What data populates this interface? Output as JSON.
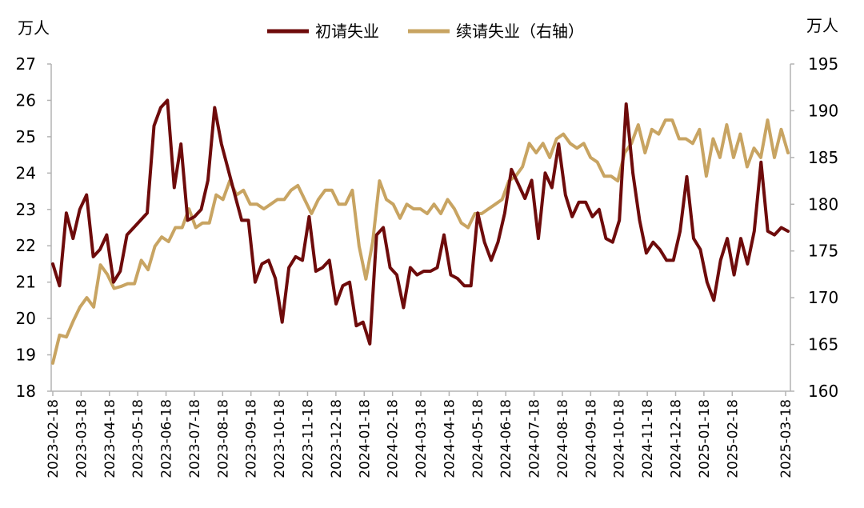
{
  "chart_data": {
    "type": "line",
    "left_axis": {
      "unit": "万人",
      "ylim": [
        18,
        27
      ],
      "ticks": [
        "27",
        "26",
        "25",
        "24",
        "23",
        "22",
        "21",
        "20",
        "19",
        "18"
      ]
    },
    "right_axis": {
      "unit": "万人",
      "ylim": [
        160,
        195
      ],
      "ticks": [
        "195",
        "190",
        "185",
        "180",
        "175",
        "170",
        "165",
        "160"
      ]
    },
    "x_ticks": [
      "2023-02-18",
      "2023-03-18",
      "2023-04-18",
      "2023-05-18",
      "2023-06-18",
      "2023-07-18",
      "2023-08-18",
      "2023-09-18",
      "2023-10-18",
      "2023-11-18",
      "2023-12-18",
      "2024-01-18",
      "2024-02-18",
      "2024-03-18",
      "2024-04-18",
      "2024-05-18",
      "2024-06-18",
      "2024-07-18",
      "2024-08-18",
      "2024-09-18",
      "2024-10-18",
      "2024-11-18",
      "2024-12-18",
      "2025-01-18",
      "2025-02-18",
      "2025-03-18"
    ],
    "legend_position": "top",
    "grid": false,
    "series": [
      {
        "name": "初请失业",
        "axis": "left",
        "color": "#6e0b0b",
        "values": [
          21.5,
          20.9,
          22.9,
          22.2,
          23.0,
          23.4,
          21.7,
          21.9,
          22.3,
          21.0,
          21.3,
          22.3,
          22.5,
          22.7,
          22.9,
          25.3,
          25.8,
          26.0,
          23.6,
          24.8,
          22.7,
          22.8,
          23.0,
          23.8,
          25.8,
          24.8,
          24.1,
          23.4,
          22.7,
          22.7,
          21.0,
          21.5,
          21.6,
          21.1,
          19.9,
          21.4,
          21.7,
          21.6,
          22.8,
          21.3,
          21.4,
          21.6,
          20.4,
          20.9,
          21.0,
          19.8,
          19.9,
          19.3,
          22.3,
          22.5,
          21.4,
          21.2,
          20.3,
          21.4,
          21.2,
          21.3,
          21.3,
          21.4,
          22.3,
          21.2,
          21.1,
          20.9,
          20.9,
          22.9,
          22.1,
          21.6,
          22.1,
          22.9,
          24.1,
          23.7,
          23.3,
          23.8,
          22.2,
          24.0,
          23.6,
          24.8,
          23.4,
          22.8,
          23.2,
          23.2,
          22.8,
          23.0,
          22.2,
          22.1,
          22.7,
          25.9,
          24.0,
          22.7,
          21.8,
          22.1,
          21.9,
          21.6,
          21.6,
          22.4,
          23.9,
          22.2,
          21.9,
          21.0,
          20.5,
          21.6,
          22.2,
          21.2,
          22.2,
          21.5,
          22.4,
          24.3,
          22.4,
          22.3,
          22.5,
          22.4
        ]
      },
      {
        "name": "续请失业（右轴）",
        "axis": "right",
        "color": "#c8a462",
        "values": [
          163.0,
          166.0,
          165.8,
          167.5,
          169.0,
          170.0,
          169.0,
          173.5,
          172.5,
          171.0,
          171.2,
          171.5,
          171.5,
          174.0,
          173.0,
          175.5,
          176.5,
          176.0,
          177.5,
          177.5,
          179.5,
          177.5,
          178.0,
          178.0,
          181.0,
          180.5,
          182.5,
          181.0,
          181.5,
          180.0,
          180.0,
          179.5,
          180.0,
          180.5,
          180.5,
          181.5,
          182.0,
          180.5,
          179.0,
          180.5,
          181.5,
          181.5,
          180.0,
          180.0,
          181.5,
          175.5,
          172.0,
          176.0,
          182.5,
          180.5,
          180.0,
          178.5,
          180.0,
          179.5,
          179.5,
          179.0,
          180.0,
          179.0,
          180.5,
          179.5,
          178.0,
          177.5,
          179.0,
          179.0,
          179.5,
          180.0,
          180.5,
          182.5,
          183.0,
          184.0,
          186.5,
          185.5,
          186.5,
          185.0,
          187.0,
          187.5,
          186.5,
          186.0,
          186.5,
          185.0,
          184.5,
          183.0,
          183.0,
          182.5,
          185.5,
          186.5,
          188.5,
          185.5,
          188.0,
          187.5,
          189.0,
          189.0,
          187.0,
          187.0,
          186.5,
          188.0,
          183.0,
          187.0,
          185.0,
          188.5,
          185.0,
          187.5,
          184.0,
          186.0,
          185.0,
          189.0,
          185.0,
          188.0,
          185.5
        ]
      }
    ]
  }
}
